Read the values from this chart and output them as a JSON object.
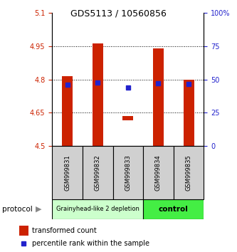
{
  "title": "GDS5113 / 10560856",
  "samples": [
    "GSM999831",
    "GSM999832",
    "GSM999833",
    "GSM999834",
    "GSM999835"
  ],
  "bar_bottoms": [
    4.5,
    4.5,
    4.615,
    4.5,
    4.5
  ],
  "bar_tops": [
    4.815,
    4.962,
    4.635,
    4.938,
    4.798
  ],
  "blue_y": [
    4.775,
    4.787,
    4.763,
    4.782,
    4.78
  ],
  "blue_size": [
    4,
    4,
    5,
    4,
    4
  ],
  "ylim": [
    4.5,
    5.1
  ],
  "yticks_left": [
    4.5,
    4.65,
    4.8,
    4.95,
    5.1
  ],
  "yticks_right": [
    0,
    25,
    50,
    75,
    100
  ],
  "ytick_labels_right": [
    "0",
    "25",
    "50",
    "75",
    "100%"
  ],
  "bar_color": "#cc2200",
  "blue_color": "#2222cc",
  "left_tick_color": "#cc2200",
  "right_tick_color": "#2222cc",
  "group1_label": "Grainyhead-like 2 depletion",
  "group2_label": "control",
  "group1_color": "#ccffcc",
  "group2_color": "#44ee44",
  "protocol_label": "protocol",
  "legend_red_label": "transformed count",
  "legend_blue_label": "percentile rank within the sample",
  "bar_width": 0.35
}
